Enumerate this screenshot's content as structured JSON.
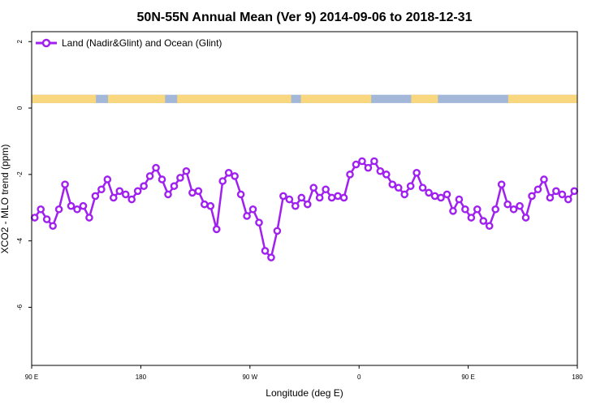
{
  "chart_data": {
    "type": "line",
    "title": "50N-55N Annual Mean (Ver 9)   2014-09-06 to 2018-12-31",
    "xlabel": "Longitude (deg E)",
    "ylabel": "XCO2 - MLO trend (ppm)",
    "xlim": [
      90,
      540
    ],
    "ylim": [
      -7.75,
      2.3
    ],
    "x_ticks": [
      {
        "value": 90,
        "label": "90 E"
      },
      {
        "value": 180,
        "label": "180"
      },
      {
        "value": 270,
        "label": "90 W"
      },
      {
        "value": 360,
        "label": "0"
      },
      {
        "value": 450,
        "label": "90 E"
      },
      {
        "value": 540,
        "label": "180"
      }
    ],
    "y_ticks": [
      {
        "value": 2,
        "label": "2"
      },
      {
        "value": 0,
        "label": "0"
      },
      {
        "value": -2,
        "label": "-2"
      },
      {
        "value": -4,
        "label": "-4"
      },
      {
        "value": -6,
        "label": "-6"
      }
    ],
    "land_ocean_strip": {
      "y_range": [
        0.15,
        0.4
      ],
      "ocean_color": "#a3b8d9",
      "land_color": "#f9d77e",
      "land_segments": [
        [
          90,
          143
        ],
        [
          153,
          200
        ],
        [
          210,
          304
        ],
        [
          312,
          370
        ],
        [
          403,
          425
        ],
        [
          483,
          550
        ]
      ]
    },
    "series": [
      {
        "name": "Land (Nadir&Glint) and Ocean (Glint)",
        "color": "#a020f0",
        "x": [
          92.5,
          97.5,
          102.5,
          107.5,
          112.5,
          117.5,
          122.5,
          127.5,
          132.5,
          137.5,
          142.5,
          147.5,
          152.5,
          157.5,
          162.5,
          167.5,
          172.5,
          177.5,
          182.5,
          187.5,
          192.5,
          197.5,
          202.5,
          207.5,
          212.5,
          217.5,
          222.5,
          227.5,
          232.5,
          237.5,
          242.5,
          247.5,
          252.5,
          257.5,
          262.5,
          267.5,
          272.5,
          277.5,
          282.5,
          287.5,
          292.5,
          297.5,
          302.5,
          307.5,
          312.5,
          317.5,
          322.5,
          327.5,
          332.5,
          337.5,
          342.5,
          347.5,
          352.5,
          357.5,
          362.5,
          367.5,
          372.5,
          377.5,
          382.5,
          387.5,
          392.5,
          397.5,
          402.5,
          407.5,
          412.5,
          417.5,
          422.5,
          427.5,
          432.5,
          437.5,
          442.5,
          447.5,
          452.5,
          457.5,
          462.5,
          467.5,
          472.5,
          477.5,
          482.5,
          487.5,
          492.5,
          497.5,
          502.5,
          507.5,
          512.5,
          517.5,
          522.5,
          527.5,
          532.5,
          537.5
        ],
        "values": [
          -3.3,
          -3.05,
          -3.35,
          -3.55,
          -3.05,
          -2.3,
          -2.95,
          -3.05,
          -2.95,
          -3.3,
          -2.65,
          -2.45,
          -2.15,
          -2.7,
          -2.5,
          -2.6,
          -2.75,
          -2.5,
          -2.35,
          -2.05,
          -1.8,
          -2.15,
          -2.6,
          -2.35,
          -2.1,
          -1.9,
          -2.55,
          -2.5,
          -2.9,
          -2.95,
          -3.65,
          -2.2,
          -1.95,
          -2.05,
          -2.6,
          -3.25,
          -3.05,
          -3.45,
          -4.3,
          -4.5,
          -3.7,
          -2.65,
          -2.75,
          -2.95,
          -2.7,
          -2.9,
          -2.4,
          -2.7,
          -2.45,
          -2.7,
          -2.65,
          -2.7,
          -2.0,
          -1.7,
          -1.6,
          -1.8,
          -1.6,
          -1.9,
          -2.0,
          -2.3,
          -2.4,
          -2.6,
          -2.35,
          -1.95,
          -2.4,
          -2.55,
          -2.65,
          -2.7,
          -2.6,
          -3.1,
          -2.75,
          -3.05,
          -3.3,
          -3.05,
          -3.4,
          -3.55,
          -3.05,
          -2.3,
          -2.9,
          -3.05,
          -2.95,
          -3.3,
          -2.65,
          -2.45,
          -2.15,
          -2.7,
          -2.5,
          -2.6,
          -2.75,
          -2.5
        ]
      }
    ]
  }
}
